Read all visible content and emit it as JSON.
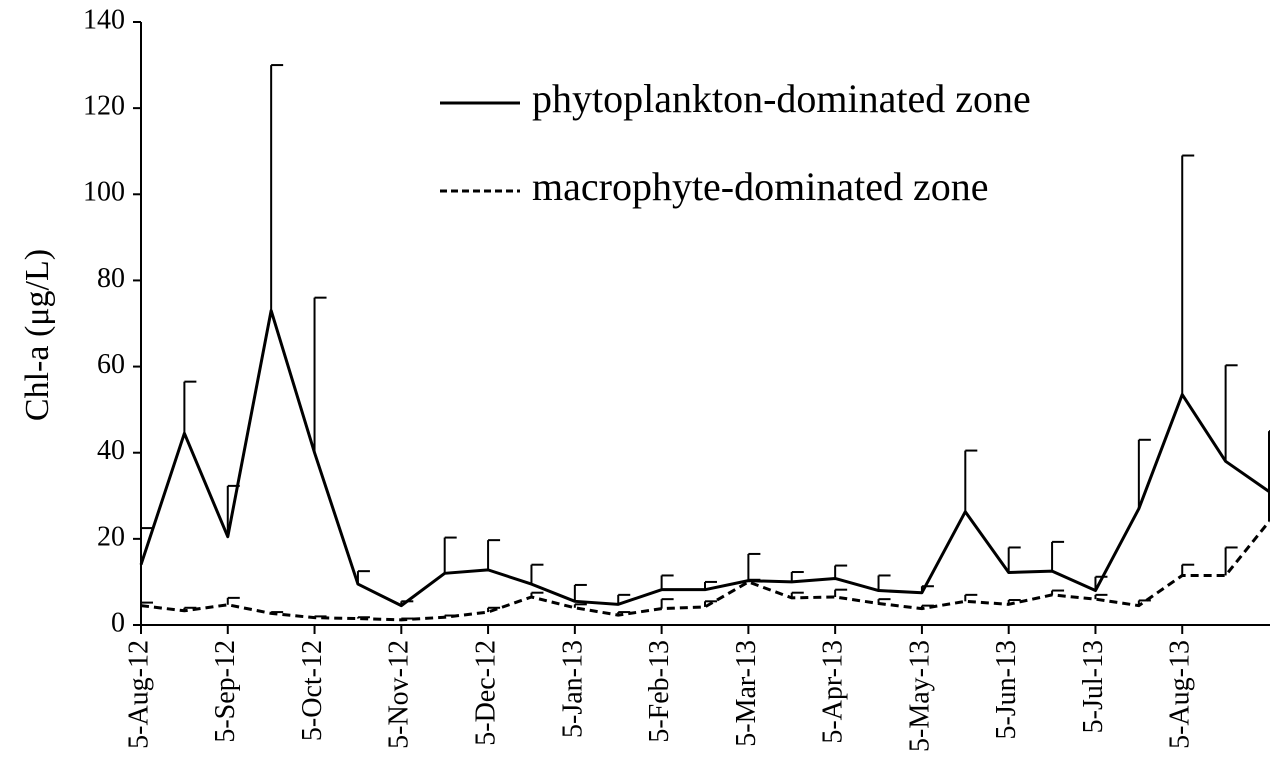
{
  "chart_data": {
    "type": "line",
    "y_label": "Chl-a (μg/L)",
    "categories": [
      "5-Aug-12",
      null,
      "5-Sep-12",
      null,
      "5-Oct-12",
      null,
      "5-Nov-12",
      null,
      "5-Dec-12",
      null,
      "5-Jan-13",
      null,
      "5-Feb-13",
      null,
      "5-Mar-13",
      null,
      "5-Apr-13",
      null,
      "5-May-13",
      null,
      "5-Jun-13",
      null,
      "5-Jul-13",
      null,
      "5-Aug-13",
      null,
      null
    ],
    "series": [
      {
        "name": "phytoplankton-dominated zone",
        "color": "#000000",
        "dash": "solid",
        "values": [
          14,
          44.5,
          20.5,
          73,
          40,
          9.5,
          4.5,
          12,
          12.8,
          9.5,
          5.5,
          4.8,
          8.2,
          8.2,
          10.3,
          10,
          10.8,
          8,
          7.5,
          26.3,
          12.2,
          12.5,
          8,
          27,
          53.5,
          38,
          31
        ],
        "errors": [
          8.5,
          12,
          11.8,
          57,
          36,
          3,
          1,
          8.3,
          6.9,
          4.5,
          3.8,
          2.2,
          3.3,
          1.8,
          6.2,
          2.3,
          3,
          3.5,
          1.5,
          14.2,
          5.8,
          6.8,
          3.2,
          16,
          55.5,
          22.3,
          14
        ]
      },
      {
        "name": "macrophyte-dominated zone",
        "color": "#000000",
        "dash": "dashed",
        "values": [
          4.5,
          3.3,
          4.7,
          2.7,
          1.7,
          1.5,
          1.2,
          1.8,
          3,
          6.5,
          4,
          2.3,
          3.8,
          4.2,
          10,
          6.3,
          6.5,
          5,
          3.8,
          5.5,
          4.8,
          7,
          6,
          4.5,
          11.5,
          11.5,
          24
        ],
        "errors": [
          0.7,
          0.7,
          1.6,
          0.3,
          0.3,
          0.3,
          0.3,
          0.4,
          1,
          1,
          0.8,
          0.7,
          2.2,
          1.3,
          0.5,
          1.2,
          1.7,
          1,
          0.7,
          1.5,
          1,
          1,
          1,
          1.2,
          2.5,
          6.5,
          11.7
        ]
      }
    ],
    "ylim": [
      0,
      140
    ],
    "yticks": [
      0,
      20,
      40,
      60,
      80,
      100,
      120,
      140
    ],
    "grid": false
  }
}
